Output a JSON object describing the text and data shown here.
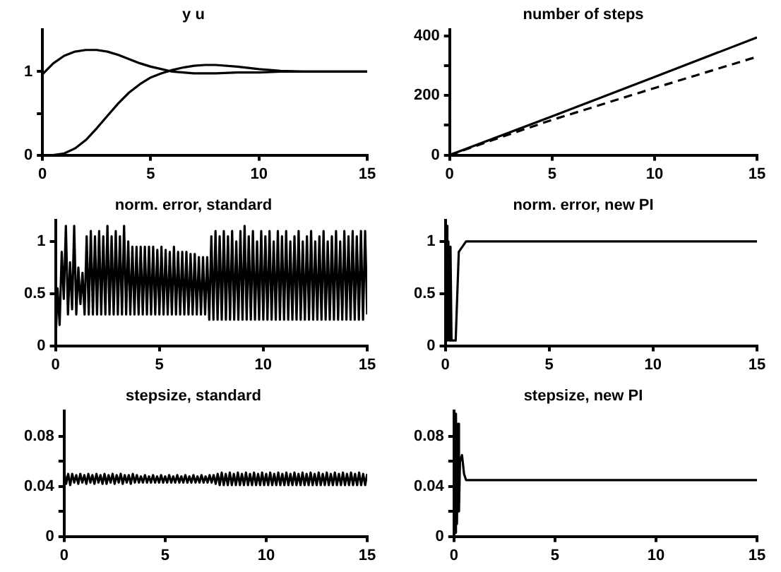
{
  "chart_data": [
    {
      "type": "line",
      "title": "y u",
      "xlim": [
        0,
        15
      ],
      "xticks": [
        0,
        5,
        10,
        15
      ],
      "ylim": [
        0,
        1.5
      ],
      "yticks": [
        0,
        {
          "value": 0.5,
          "label": null
        },
        1
      ],
      "grid": false,
      "legend": false,
      "marker": "none",
      "series": [
        {
          "color": "#000000",
          "line_style": "solid",
          "x": [
            0,
            0.5,
            1,
            1.5,
            2,
            2.5,
            3,
            3.5,
            4,
            4.5,
            5,
            5.5,
            6,
            6.5,
            7,
            7.5,
            8,
            9,
            10,
            11,
            12,
            13,
            14,
            15
          ],
          "values": [
            0.97,
            1.1,
            1.19,
            1.24,
            1.26,
            1.26,
            1.24,
            1.2,
            1.15,
            1.1,
            1.06,
            1.03,
            1.0,
            0.99,
            0.98,
            0.98,
            0.98,
            0.99,
            0.99,
            1.0,
            1.0,
            1.0,
            1.0,
            1.0
          ]
        },
        {
          "color": "#000000",
          "line_style": "solid",
          "x": [
            0,
            0.5,
            1,
            1.5,
            2,
            2.5,
            3,
            3.5,
            4,
            4.5,
            5,
            5.5,
            6,
            6.5,
            7,
            7.5,
            8,
            9,
            10,
            11,
            12,
            13,
            14,
            15
          ],
          "values": [
            0,
            0,
            0.02,
            0.08,
            0.18,
            0.32,
            0.47,
            0.62,
            0.75,
            0.85,
            0.93,
            0.98,
            1.02,
            1.05,
            1.07,
            1.08,
            1.08,
            1.06,
            1.03,
            1.01,
            1.0,
            1.0,
            1.0,
            1.0
          ]
        }
      ]
    },
    {
      "type": "line",
      "title": "number of steps",
      "xlim": [
        0,
        15
      ],
      "xticks": [
        0,
        5,
        10,
        15
      ],
      "ylim": [
        0,
        420
      ],
      "yticks": [
        0,
        {
          "value": 100,
          "label": null
        },
        200,
        {
          "value": 300,
          "label": null
        },
        400
      ],
      "grid": false,
      "legend": false,
      "marker": "none",
      "series": [
        {
          "color": "#000000",
          "line_style": "solid",
          "x": [
            0,
            5,
            10,
            15
          ],
          "values": [
            0,
            130,
            262,
            395
          ]
        },
        {
          "color": "#000000",
          "line_style": "dashed",
          "x": [
            0,
            2.5,
            5,
            10,
            15
          ],
          "values": [
            0,
            60,
            118,
            225,
            330
          ]
        }
      ]
    },
    {
      "type": "line",
      "title": "norm. error, standard",
      "xlim": [
        0,
        15
      ],
      "xticks": [
        0,
        5,
        10,
        15
      ],
      "ylim": [
        0,
        1.2
      ],
      "yticks": [
        0,
        0.5,
        1
      ],
      "grid": false,
      "legend": false,
      "marker": "none",
      "x": [
        0,
        0.1,
        0.2,
        0.3,
        0.4,
        0.5,
        0.6,
        0.7,
        0.8,
        0.9,
        1,
        1.1,
        1.2,
        1.3,
        1.4,
        1.5,
        1.6,
        1.7,
        1.8,
        1.9,
        2,
        2.1,
        2.2,
        2.3,
        2.4,
        2.5,
        2.6,
        2.7,
        2.8,
        2.9,
        3,
        3.1,
        3.2,
        3.3,
        3.4,
        3.5,
        3.6,
        3.7,
        3.8,
        3.9,
        4,
        4.1,
        4.2,
        4.3,
        4.4,
        4.5,
        4.6,
        4.7,
        4.8,
        4.9,
        5,
        5.1,
        5.2,
        5.3,
        5.4,
        5.5,
        5.6,
        5.7,
        5.8,
        5.9,
        6,
        6.1,
        6.2,
        6.3,
        6.4,
        6.5,
        6.6,
        6.7,
        6.8,
        6.9,
        7,
        7.1,
        7.2,
        7.3,
        7.4,
        7.5,
        7.6,
        7.7,
        7.8,
        7.9,
        8,
        8.1,
        8.2,
        8.3,
        8.4,
        8.5,
        8.6,
        8.7,
        8.8,
        8.9,
        9,
        9.1,
        9.2,
        9.3,
        9.4,
        9.5,
        9.6,
        9.7,
        9.8,
        9.9,
        10,
        10.1,
        10.2,
        10.3,
        10.4,
        10.5,
        10.6,
        10.7,
        10.8,
        10.9,
        11,
        11.1,
        11.2,
        11.3,
        11.4,
        11.5,
        11.6,
        11.7,
        11.8,
        11.9,
        12,
        12.1,
        12.2,
        12.3,
        12.4,
        12.5,
        12.6,
        12.7,
        12.8,
        12.9,
        13,
        13.1,
        13.2,
        13.3,
        13.4,
        13.5,
        13.6,
        13.7,
        13.8,
        13.9,
        14,
        14.1,
        14.2,
        14.3,
        14.4,
        14.5,
        14.6,
        14.7,
        14.8,
        14.9,
        15
      ],
      "series": [
        {
          "color": "#000000",
          "line_style": "solid",
          "values": [
            0,
            0.55,
            0.2,
            0.9,
            0.45,
            1.15,
            0.3,
            0.8,
            0.35,
            1.15,
            0.3,
            0.75,
            0.4,
            0.7,
            0.3,
            1.05,
            0.3,
            1.1,
            0.3,
            1.05,
            0.3,
            1.1,
            0.3,
            1.05,
            0.3,
            1.15,
            0.3,
            1.05,
            0.3,
            1.1,
            0.3,
            1.05,
            0.3,
            1.15,
            0.3,
            1.0,
            0.3,
            0.95,
            0.3,
            0.95,
            0.3,
            0.95,
            0.3,
            0.95,
            0.3,
            0.95,
            0.3,
            0.95,
            0.3,
            0.92,
            0.3,
            0.95,
            0.3,
            0.92,
            0.3,
            0.9,
            0.3,
            0.95,
            0.3,
            0.9,
            0.3,
            0.9,
            0.3,
            0.9,
            0.3,
            0.88,
            0.3,
            0.88,
            0.3,
            0.85,
            0.3,
            0.85,
            0.3,
            0.85,
            0.25,
            1.05,
            0.25,
            1.1,
            0.25,
            1.05,
            0.25,
            1.1,
            0.25,
            1.05,
            0.25,
            1.1,
            0.25,
            1.0,
            0.25,
            1.1,
            0.25,
            1.15,
            0.25,
            1.05,
            0.25,
            1.1,
            0.25,
            1.0,
            0.25,
            1.1,
            0.25,
            1.05,
            0.25,
            1.1,
            0.25,
            1.0,
            0.25,
            1.1,
            0.25,
            1.05,
            0.25,
            1.1,
            0.25,
            1.0,
            0.25,
            1.05,
            0.25,
            1.1,
            0.25,
            1.0,
            0.25,
            1.05,
            0.25,
            1.1,
            0.25,
            1.0,
            0.25,
            1.05,
            0.25,
            1.1,
            0.25,
            1.0,
            0.25,
            1.05,
            0.25,
            1.1,
            0.25,
            1.0,
            0.25,
            1.1,
            0.25,
            1.05,
            0.25,
            1.1,
            0.25,
            1.05,
            0.25,
            1.1,
            0.25,
            1.1,
            0.3
          ]
        }
      ]
    },
    {
      "type": "line",
      "title": "norm. error, new PI",
      "xlim": [
        0,
        15
      ],
      "xticks": [
        0,
        5,
        10,
        15
      ],
      "ylim": [
        0,
        1.2
      ],
      "yticks": [
        0,
        0.5,
        1
      ],
      "grid": false,
      "legend": false,
      "marker": "none",
      "series": [
        {
          "color": "#000000",
          "line_style": "solid",
          "x": [
            0,
            0.05,
            0.1,
            0.15,
            0.2,
            0.25,
            0.3,
            0.5,
            0.65,
            1.0,
            15
          ],
          "values": [
            0,
            1.15,
            0.05,
            1.0,
            0.05,
            0.95,
            0.05,
            0.05,
            0.9,
            1.0,
            1.0
          ]
        }
      ]
    },
    {
      "type": "line",
      "title": "stepsize, standard",
      "xlim": [
        0,
        15
      ],
      "xticks": [
        0,
        5,
        10,
        15
      ],
      "ylim": [
        0,
        0.1
      ],
      "yticks": [
        0,
        {
          "value": 0.02,
          "label": null
        },
        0.04,
        {
          "value": 0.06,
          "label": null
        },
        0.08
      ],
      "grid": false,
      "legend": false,
      "marker": "none",
      "x": [
        0,
        0.1,
        0.2,
        0.3,
        0.4,
        0.5,
        0.6,
        0.7,
        0.8,
        0.9,
        1,
        1.1,
        1.2,
        1.3,
        1.4,
        1.5,
        1.6,
        1.7,
        1.8,
        1.9,
        2,
        2.1,
        2.2,
        2.3,
        2.4,
        2.5,
        2.6,
        2.7,
        2.8,
        2.9,
        3,
        3.1,
        3.2,
        3.3,
        3.4,
        3.5,
        3.6,
        3.7,
        3.8,
        3.9,
        4,
        4.1,
        4.2,
        4.3,
        4.4,
        4.5,
        4.6,
        4.7,
        4.8,
        4.9,
        5,
        5.1,
        5.2,
        5.3,
        5.4,
        5.5,
        5.6,
        5.7,
        5.8,
        5.9,
        6,
        6.1,
        6.2,
        6.3,
        6.4,
        6.5,
        6.6,
        6.7,
        6.8,
        6.9,
        7,
        7.1,
        7.2,
        7.3,
        7.4,
        7.5,
        7.6,
        7.7,
        7.8,
        7.9,
        8,
        8.1,
        8.2,
        8.3,
        8.4,
        8.5,
        8.6,
        8.7,
        8.8,
        8.9,
        9,
        9.1,
        9.2,
        9.3,
        9.4,
        9.5,
        9.6,
        9.7,
        9.8,
        9.9,
        10,
        10.1,
        10.2,
        10.3,
        10.4,
        10.5,
        10.6,
        10.7,
        10.8,
        10.9,
        11,
        11.1,
        11.2,
        11.3,
        11.4,
        11.5,
        11.6,
        11.7,
        11.8,
        11.9,
        12,
        12.1,
        12.2,
        12.3,
        12.4,
        12.5,
        12.6,
        12.7,
        12.8,
        12.9,
        13,
        13.1,
        13.2,
        13.3,
        13.4,
        13.5,
        13.6,
        13.7,
        13.8,
        13.9,
        14,
        14.1,
        14.2,
        14.3,
        14.4,
        14.5,
        14.6,
        14.7,
        14.8,
        14.9,
        15
      ],
      "series": [
        {
          "color": "#000000",
          "line_style": "solid",
          "values": [
            0.052,
            0.042,
            0.05,
            0.041,
            0.05,
            0.043,
            0.049,
            0.042,
            0.05,
            0.043,
            0.049,
            0.042,
            0.05,
            0.043,
            0.049,
            0.042,
            0.05,
            0.043,
            0.049,
            0.042,
            0.05,
            0.042,
            0.049,
            0.043,
            0.05,
            0.042,
            0.049,
            0.043,
            0.05,
            0.042,
            0.049,
            0.043,
            0.049,
            0.042,
            0.05,
            0.043,
            0.049,
            0.043,
            0.048,
            0.043,
            0.049,
            0.043,
            0.048,
            0.043,
            0.049,
            0.043,
            0.048,
            0.043,
            0.049,
            0.043,
            0.048,
            0.043,
            0.049,
            0.043,
            0.048,
            0.043,
            0.049,
            0.043,
            0.048,
            0.043,
            0.049,
            0.043,
            0.048,
            0.043,
            0.049,
            0.043,
            0.048,
            0.043,
            0.049,
            0.043,
            0.048,
            0.043,
            0.049,
            0.043,
            0.049,
            0.042,
            0.05,
            0.041,
            0.051,
            0.041,
            0.05,
            0.041,
            0.051,
            0.041,
            0.05,
            0.041,
            0.051,
            0.041,
            0.05,
            0.041,
            0.051,
            0.041,
            0.05,
            0.041,
            0.051,
            0.041,
            0.05,
            0.041,
            0.051,
            0.041,
            0.05,
            0.041,
            0.051,
            0.041,
            0.05,
            0.041,
            0.051,
            0.041,
            0.05,
            0.041,
            0.051,
            0.041,
            0.05,
            0.041,
            0.051,
            0.041,
            0.05,
            0.041,
            0.051,
            0.041,
            0.05,
            0.041,
            0.051,
            0.041,
            0.05,
            0.041,
            0.051,
            0.041,
            0.05,
            0.041,
            0.051,
            0.041,
            0.05,
            0.041,
            0.051,
            0.041,
            0.05,
            0.041,
            0.051,
            0.041,
            0.05,
            0.041,
            0.051,
            0.041,
            0.05,
            0.041,
            0.051,
            0.041,
            0.05,
            0.041,
            0.05
          ]
        }
      ]
    },
    {
      "type": "line",
      "title": "stepsize, new PI",
      "xlim": [
        0,
        15
      ],
      "xticks": [
        0,
        5,
        10,
        15
      ],
      "ylim": [
        0,
        0.1
      ],
      "yticks": [
        0,
        {
          "value": 0.02,
          "label": null
        },
        0.04,
        {
          "value": 0.06,
          "label": null
        },
        0.08
      ],
      "grid": false,
      "legend": false,
      "marker": "none",
      "series": [
        {
          "color": "#000000",
          "line_style": "solid",
          "x": [
            0,
            0.05,
            0.1,
            0.15,
            0.2,
            0.25,
            0.3,
            0.4,
            0.5,
            0.6,
            15
          ],
          "values": [
            0.098,
            0.003,
            0.098,
            0.01,
            0.09,
            0.02,
            0.06,
            0.065,
            0.05,
            0.045,
            0.045
          ]
        }
      ]
    }
  ]
}
